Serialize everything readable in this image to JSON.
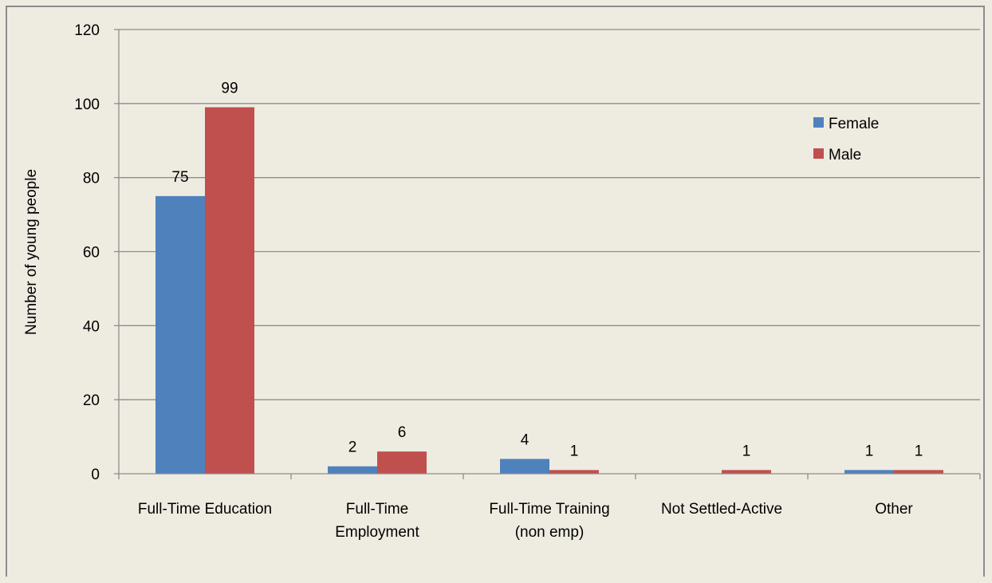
{
  "chart_data": {
    "type": "bar",
    "categories": [
      [
        "Full-Time Education"
      ],
      [
        "Full-Time",
        "Employment"
      ],
      [
        "Full-Time Training",
        "(non emp)"
      ],
      [
        "Not Settled-Active"
      ],
      [
        "Other"
      ]
    ],
    "series": [
      {
        "name": "Female",
        "color": "#4f81bd",
        "values": [
          75,
          2,
          4,
          0,
          1
        ],
        "labels": [
          "75",
          "2",
          "4",
          "",
          "1"
        ]
      },
      {
        "name": "Male",
        "color": "#c0504d",
        "values": [
          99,
          6,
          1,
          1,
          1
        ],
        "labels": [
          "99",
          "6",
          "1",
          "1",
          "1"
        ]
      }
    ],
    "title": "",
    "xlabel": "",
    "ylabel": "Number of young people",
    "ylim": [
      0,
      120
    ],
    "yticks": [
      "0",
      "20",
      "40",
      "60",
      "80",
      "100",
      "120"
    ],
    "grid": true,
    "legend_position": "top-right"
  }
}
